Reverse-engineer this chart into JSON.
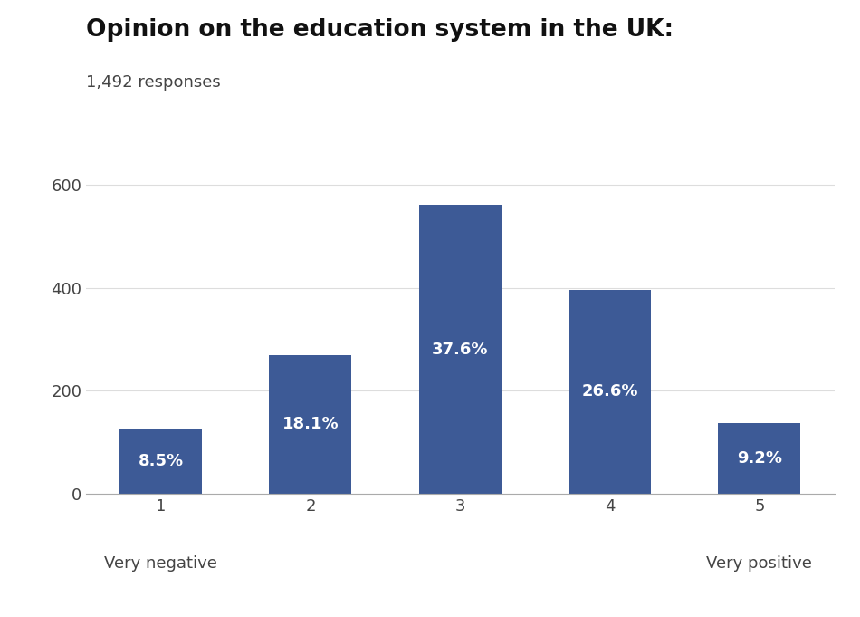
{
  "title": "Opinion on the education system in the UK:",
  "subtitle": "1,492 responses",
  "categories": [
    "1",
    "2",
    "3",
    "4",
    "5"
  ],
  "values": [
    127,
    270,
    561,
    397,
    137
  ],
  "percentages": [
    "8.5%",
    "18.1%",
    "37.6%",
    "26.6%",
    "9.2%"
  ],
  "bar_color": "#3D5A96",
  "bar_width": 0.55,
  "ylim": [
    0,
    660
  ],
  "yticks": [
    0,
    200,
    400,
    600
  ],
  "xlabel_left": "Very negative",
  "xlabel_right": "Very positive",
  "title_fontsize": 19,
  "subtitle_fontsize": 13,
  "tick_fontsize": 13,
  "label_fontsize": 13,
  "pct_fontsize": 13,
  "background_color": "#ffffff",
  "text_color": "#ffffff",
  "axis_label_color": "#444444",
  "grid_color": "#dddddd"
}
